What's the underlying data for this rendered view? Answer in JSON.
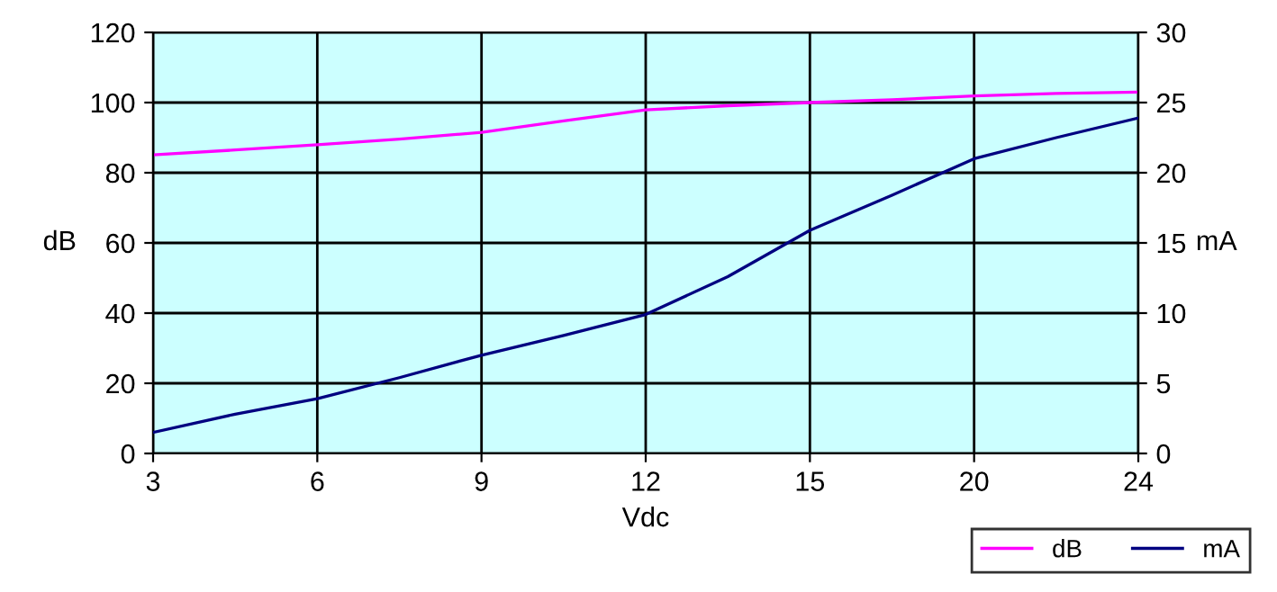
{
  "chart_data": {
    "type": "line",
    "xlabel": "Vdc",
    "ylabel": "dB",
    "y2label": "mA",
    "categories": [
      "3",
      null,
      "6",
      null,
      "9",
      null,
      "12",
      null,
      "15",
      null,
      "20",
      null,
      "24"
    ],
    "series": [
      {
        "name": "dB",
        "color": "#ff00ff",
        "values": [
          85.1,
          86.5,
          88,
          89.6,
          91.5,
          94.8,
          97.9,
          99.1,
          100,
          100.8,
          101.9,
          102.6,
          103
        ]
      },
      {
        "name": "mA",
        "color": "#000080",
        "axis": "y2",
        "values": [
          1.5,
          2.8,
          3.9,
          5.4,
          7.0,
          8.4,
          9.9,
          12.6,
          15.9,
          18.4,
          21.0,
          22.5,
          23.9
        ]
      }
    ],
    "ylim": [
      0,
      120
    ],
    "yticks": [
      0,
      20,
      40,
      60,
      80,
      100,
      120
    ],
    "y2lim": [
      0,
      30
    ],
    "y2ticks": [
      0,
      5,
      10,
      15,
      20,
      25,
      30
    ],
    "grid": true,
    "legend": "bottom right"
  }
}
